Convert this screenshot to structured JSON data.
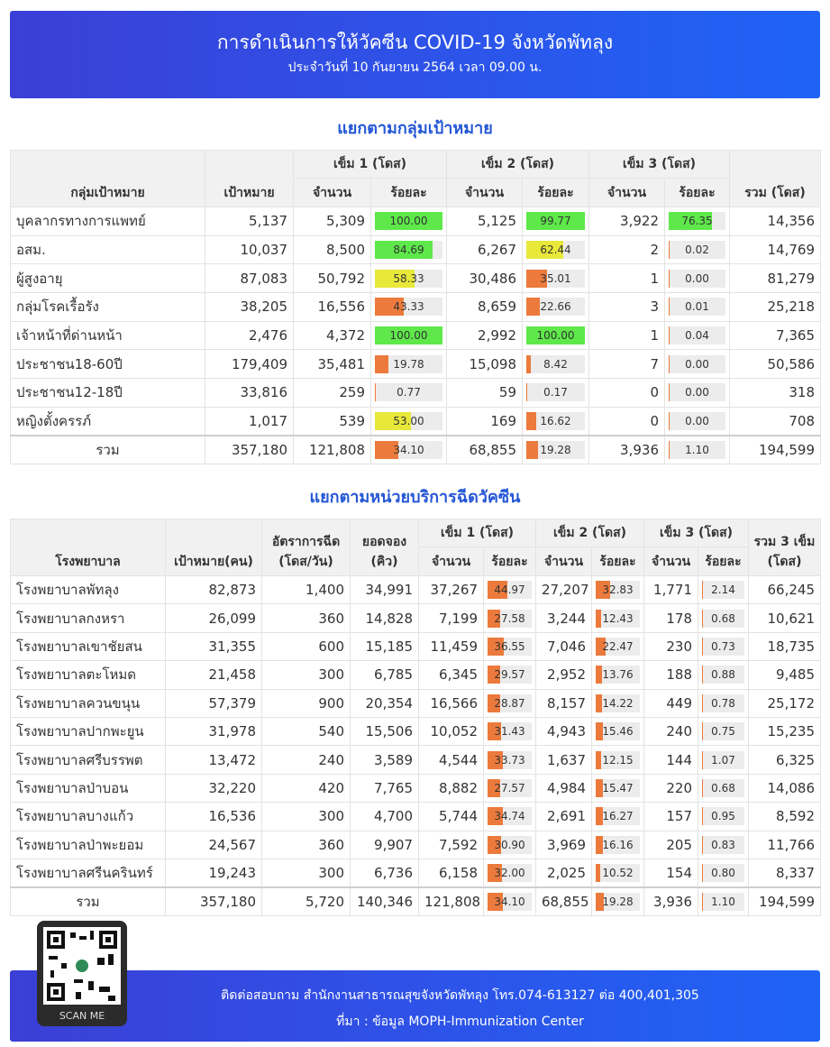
{
  "header": {
    "title": "การดำเนินการให้วัคซีน COVID-19 จังหวัดพัทลุง",
    "subtitle": "ประจำวันที่ 10 กันยายน 2564 เวลา 09.00 น."
  },
  "target_section": {
    "title": "แยกตามกลุ่มเป้าหมาย",
    "headers": {
      "group": "กลุ่มเป้าหมาย",
      "target": "เป้าหมาย",
      "dose1": "เข็ม 1 (โดส)",
      "dose2": "เข็ม 2 (โดส)",
      "dose3": "เข็ม 3 (โดส)",
      "count": "จำนวน",
      "percent": "ร้อยละ",
      "total": "รวม (โดส)"
    },
    "rows": [
      {
        "name": "บุคลากรทางการแพทย์",
        "target": "5,137",
        "d1": "5,309",
        "p1": "100.00",
        "d2": "5,125",
        "p2": "99.77",
        "d3": "3,922",
        "p3": "76.35",
        "total": "14,356"
      },
      {
        "name": "อสม.",
        "target": "10,037",
        "d1": "8,500",
        "p1": "84.69",
        "d2": "6,267",
        "p2": "62.44",
        "d3": "2",
        "p3": "0.02",
        "total": "14,769"
      },
      {
        "name": "ผู้สูงอายุ",
        "target": "87,083",
        "d1": "50,792",
        "p1": "58.33",
        "d2": "30,486",
        "p2": "35.01",
        "d3": "1",
        "p3": "0.00",
        "total": "81,279"
      },
      {
        "name": "กลุ่มโรคเรื้อรัง",
        "target": "38,205",
        "d1": "16,556",
        "p1": "43.33",
        "d2": "8,659",
        "p2": "22.66",
        "d3": "3",
        "p3": "0.01",
        "total": "25,218"
      },
      {
        "name": "เจ้าหน้าที่ด่านหน้า",
        "target": "2,476",
        "d1": "4,372",
        "p1": "100.00",
        "d2": "2,992",
        "p2": "100.00",
        "d3": "1",
        "p3": "0.04",
        "total": "7,365"
      },
      {
        "name": "ประชาชน18-60ปี",
        "target": "179,409",
        "d1": "35,481",
        "p1": "19.78",
        "d2": "15,098",
        "p2": "8.42",
        "d3": "7",
        "p3": "0.00",
        "total": "50,586"
      },
      {
        "name": "ประชาชน12-18ปี",
        "target": "33,816",
        "d1": "259",
        "p1": "0.77",
        "d2": "59",
        "p2": "0.17",
        "d3": "0",
        "p3": "0.00",
        "total": "318"
      },
      {
        "name": "หญิงตั้งครรภ์",
        "target": "1,017",
        "d1": "539",
        "p1": "53.00",
        "d2": "169",
        "p2": "16.62",
        "d3": "0",
        "p3": "0.00",
        "total": "708"
      }
    ],
    "total_row": {
      "name": "รวม",
      "target": "357,180",
      "d1": "121,808",
      "p1": "34.10",
      "d2": "68,855",
      "p2": "19.28",
      "d3": "3,936",
      "p3": "1.10",
      "total": "194,599"
    }
  },
  "hospital_section": {
    "title": "แยกตามหน่วยบริการฉีดวัคซีน",
    "headers": {
      "hospital": "โรงพยาบาล",
      "target": "เป้าหมาย(คน)",
      "rate_line1": "อัตราการฉีด",
      "rate_line2": "(โดส/วัน)",
      "booked_line1": "ยอดจอง",
      "booked_line2": "(คิว)",
      "dose1": "เข็ม 1 (โดส)",
      "dose2": "เข็ม 2 (โดส)",
      "dose3": "เข็ม 3 (โดส)",
      "count": "จำนวน",
      "percent": "ร้อยละ",
      "total_line1": "รวม 3 เข็ม",
      "total_line2": "(โดส)"
    },
    "rows": [
      {
        "name": "โรงพยาบาลพัทลุง",
        "target": "82,873",
        "rate": "1,400",
        "booked": "34,991",
        "d1": "37,267",
        "p1": "44.97",
        "d2": "27,207",
        "p2": "32.83",
        "d3": "1,771",
        "p3": "2.14",
        "total": "66,245"
      },
      {
        "name": "โรงพยาบาลกงหรา",
        "target": "26,099",
        "rate": "360",
        "booked": "14,828",
        "d1": "7,199",
        "p1": "27.58",
        "d2": "3,244",
        "p2": "12.43",
        "d3": "178",
        "p3": "0.68",
        "total": "10,621"
      },
      {
        "name": "โรงพยาบาลเขาชัยสน",
        "target": "31,355",
        "rate": "600",
        "booked": "15,185",
        "d1": "11,459",
        "p1": "36.55",
        "d2": "7,046",
        "p2": "22.47",
        "d3": "230",
        "p3": "0.73",
        "total": "18,735"
      },
      {
        "name": "โรงพยาบาลตะโหมด",
        "target": "21,458",
        "rate": "300",
        "booked": "6,785",
        "d1": "6,345",
        "p1": "29.57",
        "d2": "2,952",
        "p2": "13.76",
        "d3": "188",
        "p3": "0.88",
        "total": "9,485"
      },
      {
        "name": "โรงพยาบาลควนขนุน",
        "target": "57,379",
        "rate": "900",
        "booked": "20,354",
        "d1": "16,566",
        "p1": "28.87",
        "d2": "8,157",
        "p2": "14.22",
        "d3": "449",
        "p3": "0.78",
        "total": "25,172"
      },
      {
        "name": "โรงพยาบาลปากพะยูน",
        "target": "31,978",
        "rate": "540",
        "booked": "15,506",
        "d1": "10,052",
        "p1": "31.43",
        "d2": "4,943",
        "p2": "15.46",
        "d3": "240",
        "p3": "0.75",
        "total": "15,235"
      },
      {
        "name": "โรงพยาบาลศรีบรรพต",
        "target": "13,472",
        "rate": "240",
        "booked": "3,589",
        "d1": "4,544",
        "p1": "33.73",
        "d2": "1,637",
        "p2": "12.15",
        "d3": "144",
        "p3": "1.07",
        "total": "6,325"
      },
      {
        "name": "โรงพยาบาลป่าบอน",
        "target": "32,220",
        "rate": "420",
        "booked": "7,765",
        "d1": "8,882",
        "p1": "27.57",
        "d2": "4,984",
        "p2": "15.47",
        "d3": "220",
        "p3": "0.68",
        "total": "14,086"
      },
      {
        "name": "โรงพยาบาลบางแก้ว",
        "target": "16,536",
        "rate": "300",
        "booked": "4,700",
        "d1": "5,744",
        "p1": "34.74",
        "d2": "2,691",
        "p2": "16.27",
        "d3": "157",
        "p3": "0.95",
        "total": "8,592"
      },
      {
        "name": "โรงพยาบาลป่าพะยอม",
        "target": "24,567",
        "rate": "360",
        "booked": "9,907",
        "d1": "7,592",
        "p1": "30.90",
        "d2": "3,969",
        "p2": "16.16",
        "d3": "205",
        "p3": "0.83",
        "total": "11,766"
      },
      {
        "name": "โรงพยาบาลศรีนครินทร์",
        "target": "19,243",
        "rate": "300",
        "booked": "6,736",
        "d1": "6,158",
        "p1": "32.00",
        "d2": "2,025",
        "p2": "10.52",
        "d3": "154",
        "p3": "0.80",
        "total": "8,337"
      }
    ],
    "total_row": {
      "name": "รวม",
      "target": "357,180",
      "rate": "5,720",
      "booked": "140,346",
      "d1": "121,808",
      "p1": "34.10",
      "d2": "68,855",
      "p2": "19.28",
      "d3": "3,936",
      "p3": "1.10",
      "total": "194,599"
    }
  },
  "footer": {
    "contact": "ติดต่อสอบถาม สำนักงานสาธารณสุขจังหวัดพัทลุง โทร.074-613127 ต่อ 400,401,305",
    "source": "ที่มา : ข้อมูล MOPH-Immunization Center",
    "qr_caption": "SCAN ME"
  },
  "colors": {
    "banner_start": "#3b3fd6",
    "banner_end": "#1f63f5",
    "section_title": "#2557d6",
    "bar_green": "#5ee84a",
    "bar_yellow": "#e8e83a",
    "bar_orange": "#ec7a3c"
  }
}
